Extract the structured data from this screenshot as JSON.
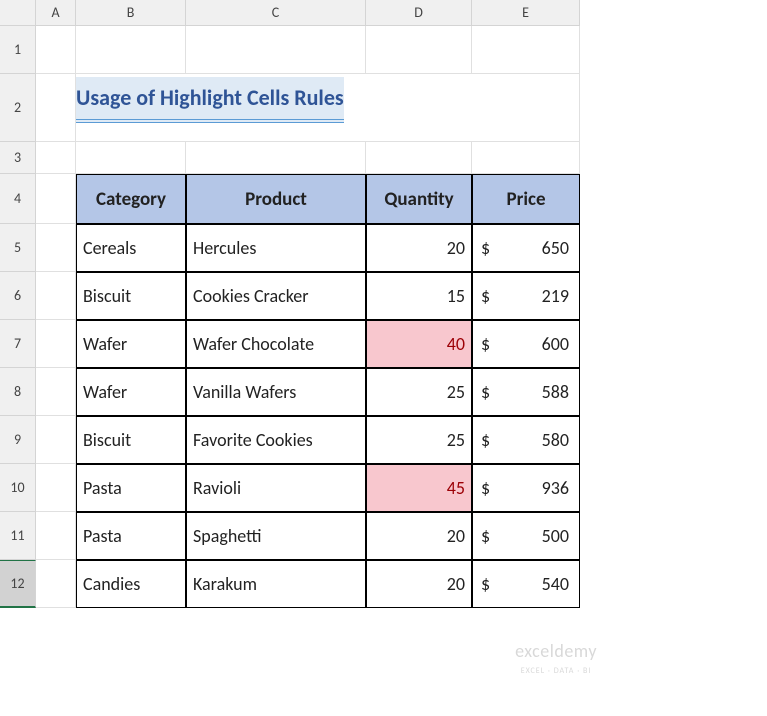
{
  "columns": [
    "A",
    "B",
    "C",
    "D",
    "E"
  ],
  "rows": [
    "1",
    "2",
    "3",
    "4",
    "5",
    "6",
    "7",
    "8",
    "9",
    "10",
    "11",
    "12"
  ],
  "selected_row": 12,
  "title": "Usage of Highlight Cells Rules",
  "title_bg": "#dfeaf5",
  "title_color": "#2f5496",
  "title_underline_color": "#5b9bd5",
  "header_bg": "#b4c6e7",
  "highlight_bg": "#f8c7ce",
  "highlight_fg": "#9c0006",
  "table": {
    "headers": [
      "Category",
      "Product",
      "Quantity",
      "Price"
    ],
    "rows": [
      {
        "category": "Cereals",
        "product": "Hercules",
        "quantity": 20,
        "price": 650,
        "hl": false
      },
      {
        "category": "Biscuit",
        "product": "Cookies Cracker",
        "quantity": 15,
        "price": 219,
        "hl": false
      },
      {
        "category": "Wafer",
        "product": "Wafer Chocolate",
        "quantity": 40,
        "price": 600,
        "hl": true
      },
      {
        "category": "Wafer",
        "product": "Vanilla Wafers",
        "quantity": 25,
        "price": 588,
        "hl": false
      },
      {
        "category": "Biscuit",
        "product": "Favorite Cookies",
        "quantity": 25,
        "price": 580,
        "hl": false
      },
      {
        "category": "Pasta",
        "product": "Ravioli",
        "quantity": 45,
        "price": 936,
        "hl": true
      },
      {
        "category": "Pasta",
        "product": "Spaghetti",
        "quantity": 20,
        "price": 500,
        "hl": false
      },
      {
        "category": "Candies",
        "product": "Karakum",
        "quantity": 20,
        "price": 540,
        "hl": false
      }
    ],
    "currency_symbol": "$"
  },
  "watermark": {
    "brand": "exceldemy",
    "tag": "EXCEL · DATA · BI"
  }
}
